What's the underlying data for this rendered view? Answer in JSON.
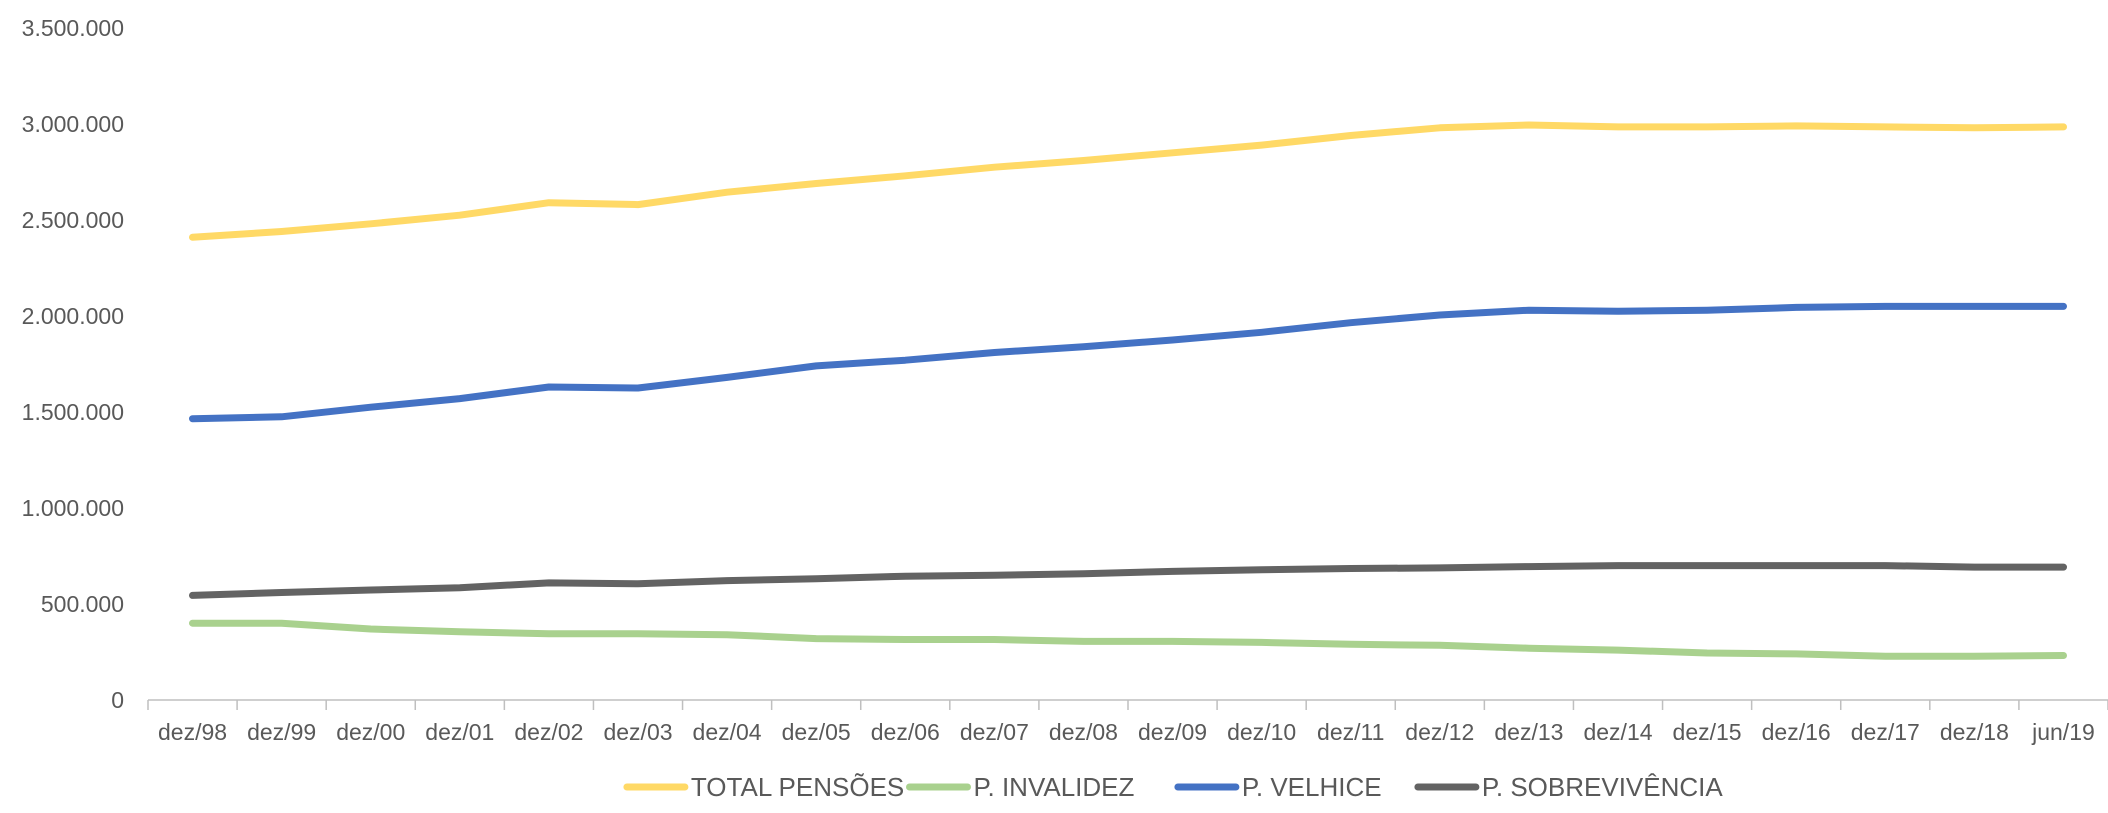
{
  "chart_data": {
    "type": "line",
    "title": "",
    "xlabel": "",
    "ylabel": "",
    "categories": [
      "dez/98",
      "dez/99",
      "dez/00",
      "dez/01",
      "dez/02",
      "dez/03",
      "dez/04",
      "dez/05",
      "dez/06",
      "dez/07",
      "dez/08",
      "dez/09",
      "dez/10",
      "dez/11",
      "dez/12",
      "dez/13",
      "dez/14",
      "dez/15",
      "dez/16",
      "dez/17",
      "dez/18",
      "jun/19"
    ],
    "yticks": [
      0,
      500000,
      1000000,
      1500000,
      2000000,
      2500000,
      3000000,
      3500000
    ],
    "ytick_labels": [
      "0",
      "500.000",
      "1.000.000",
      "1.500.000",
      "2.000.000",
      "2.500.000",
      "3.000.000",
      "3.500.000"
    ],
    "ylim": [
      0,
      3500000
    ],
    "grid": false,
    "legend_position": "bottom",
    "series": [
      {
        "name": "TOTAL PENSÕES",
        "color": "#FFD966",
        "values": [
          2410000,
          2440000,
          2480000,
          2525000,
          2590000,
          2580000,
          2645000,
          2690000,
          2730000,
          2775000,
          2810000,
          2850000,
          2890000,
          2940000,
          2980000,
          2995000,
          2985000,
          2985000,
          2990000,
          2985000,
          2980000,
          2985000
        ]
      },
      {
        "name": "P. INVALIDEZ",
        "color": "#A9D18E",
        "values": [
          400000,
          400000,
          370000,
          355000,
          345000,
          345000,
          340000,
          320000,
          315000,
          315000,
          305000,
          305000,
          300000,
          290000,
          285000,
          270000,
          260000,
          245000,
          240000,
          228000,
          228000,
          232000
        ]
      },
      {
        "name": "P. VELHICE",
        "color": "#4472C4",
        "values": [
          1465000,
          1475000,
          1525000,
          1570000,
          1630000,
          1625000,
          1680000,
          1740000,
          1770000,
          1810000,
          1840000,
          1875000,
          1915000,
          1965000,
          2005000,
          2030000,
          2025000,
          2030000,
          2045000,
          2050000,
          2050000,
          2050000
        ]
      },
      {
        "name": "P. SOBREVIVÊNCIA",
        "color": "#636363",
        "values": [
          545000,
          560000,
          573000,
          585000,
          610000,
          605000,
          622000,
          632000,
          645000,
          650000,
          658000,
          670000,
          678000,
          685000,
          688000,
          695000,
          700000,
          700000,
          700000,
          700000,
          692000,
          692000
        ]
      }
    ]
  }
}
